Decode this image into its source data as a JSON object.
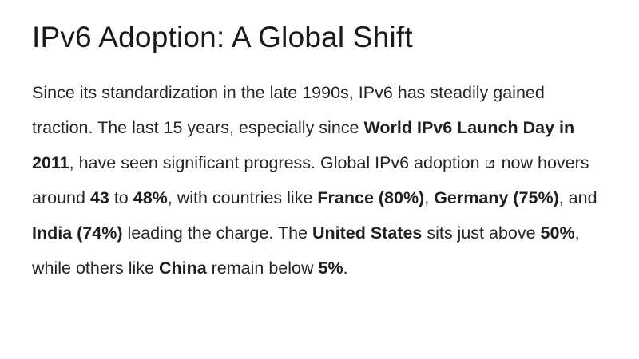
{
  "colors": {
    "background": "#ffffff",
    "heading_text": "#1a1a1a",
    "body_text": "#242424"
  },
  "article": {
    "title": "IPv6 Adoption: A Global Shift",
    "segments": [
      {
        "text": "Since its standardization in the late 1990s, IPv6 has steadily gained traction. The last 15 years, especially since ",
        "bold": false
      },
      {
        "text": "World IPv6 Launch Day in 2011",
        "bold": true
      },
      {
        "text": ", have seen significant progress. ",
        "bold": false
      },
      {
        "text": "Global IPv6 adoption",
        "bold": false,
        "link": true,
        "icon_after": "external-link-icon"
      },
      {
        "text": " now hovers around ",
        "bold": false
      },
      {
        "text": "43",
        "bold": true
      },
      {
        "text": " to ",
        "bold": false
      },
      {
        "text": "48%",
        "bold": true
      },
      {
        "text": ", with countries like ",
        "bold": false
      },
      {
        "text": "France (80%)",
        "bold": true
      },
      {
        "text": ", ",
        "bold": false
      },
      {
        "text": "Germany (75%)",
        "bold": true
      },
      {
        "text": ", and ",
        "bold": false
      },
      {
        "text": "India (74%)",
        "bold": true
      },
      {
        "text": " leading the charge. The ",
        "bold": false
      },
      {
        "text": "United States",
        "bold": true
      },
      {
        "text": " sits just above ",
        "bold": false
      },
      {
        "text": "50%",
        "bold": true
      },
      {
        "text": ", while others like ",
        "bold": false
      },
      {
        "text": "China",
        "bold": true
      },
      {
        "text": " remain below ",
        "bold": false
      },
      {
        "text": "5%",
        "bold": true
      },
      {
        "text": ".",
        "bold": false
      }
    ]
  }
}
